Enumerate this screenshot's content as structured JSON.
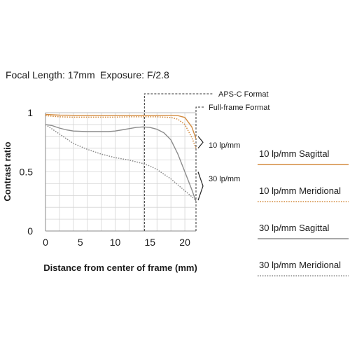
{
  "header": {
    "focal_length": "Focal Length: 17mm",
    "exposure": "Exposure: F/2.8"
  },
  "chart_data": {
    "type": "line",
    "title": "",
    "xlabel": "Distance from center of frame (mm)",
    "ylabel": "Contrast ratio",
    "xlim": [
      0,
      21.6
    ],
    "ylim": [
      0,
      1
    ],
    "x_ticks": [
      "0",
      "5",
      "10",
      "15",
      "20"
    ],
    "y_ticks": [
      "0",
      "0.5",
      "1"
    ],
    "grid": true,
    "legend_position": "right",
    "series": [
      {
        "name": "10 lp/mm Sagittal",
        "color": "#d38b3f",
        "dash": "solid",
        "x": [
          0,
          2,
          4,
          6,
          8,
          10,
          12,
          14,
          16,
          18,
          19,
          20,
          21,
          21.6
        ],
        "y": [
          0.985,
          0.98,
          0.978,
          0.978,
          0.977,
          0.978,
          0.978,
          0.978,
          0.978,
          0.978,
          0.975,
          0.96,
          0.88,
          0.78
        ]
      },
      {
        "name": "10 lp/mm Meridional",
        "color": "#d38b3f",
        "dash": "dotted",
        "x": [
          0,
          2,
          4,
          6,
          8,
          10,
          12,
          14,
          16,
          18,
          19,
          20,
          21,
          21.6
        ],
        "y": [
          0.975,
          0.965,
          0.962,
          0.962,
          0.962,
          0.963,
          0.965,
          0.965,
          0.965,
          0.96,
          0.945,
          0.9,
          0.79,
          0.7
        ]
      },
      {
        "name": "30 lp/mm Sagittal",
        "color": "#8c8c8c",
        "dash": "solid",
        "x": [
          0,
          1,
          2,
          3,
          4,
          6,
          8,
          9,
          10,
          11,
          12,
          13,
          14,
          15,
          16,
          17,
          18,
          19,
          20,
          21,
          21.6
        ],
        "y": [
          0.9,
          0.89,
          0.87,
          0.855,
          0.845,
          0.84,
          0.84,
          0.84,
          0.845,
          0.855,
          0.865,
          0.875,
          0.88,
          0.875,
          0.86,
          0.83,
          0.77,
          0.65,
          0.5,
          0.35,
          0.25
        ]
      },
      {
        "name": "30 lp/mm Meridional",
        "color": "#8c8c8c",
        "dash": "dotted",
        "x": [
          0,
          1,
          2,
          3,
          4,
          6,
          8,
          10,
          12,
          14,
          15,
          16,
          17,
          18,
          19,
          20,
          21,
          21.6
        ],
        "y": [
          0.9,
          0.86,
          0.82,
          0.78,
          0.74,
          0.69,
          0.65,
          0.62,
          0.6,
          0.57,
          0.55,
          0.52,
          0.48,
          0.44,
          0.39,
          0.34,
          0.29,
          0.26
        ]
      }
    ],
    "annotations": {
      "apsc": {
        "label": "APS-C Format",
        "x": 14.2
      },
      "fullframe": {
        "label": "Full-frame Format",
        "x": 21.6
      },
      "lp10": {
        "label": "10 lp/mm",
        "y_range": [
          0.7,
          0.8
        ]
      },
      "lp30": {
        "label": "30 lp/mm",
        "y_range": [
          0.26,
          0.5
        ]
      }
    }
  }
}
